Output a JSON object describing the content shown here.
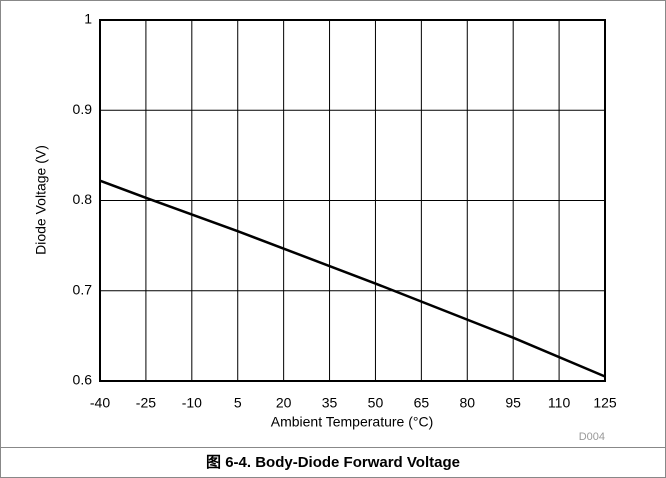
{
  "chart_data": {
    "type": "line",
    "x_label": "Ambient Temperature (°C)",
    "y_label": "Diode Voltage (V)",
    "annotation": "D004",
    "x": [
      -40,
      -25,
      5,
      50,
      95,
      125
    ],
    "series": [
      {
        "name": "Body-Diode Forward Voltage",
        "color": "#000000",
        "values": [
          0.822,
          0.803,
          0.766,
          0.708,
          0.648,
          0.605
        ]
      }
    ],
    "xlim": [
      -40,
      125
    ],
    "xticks": [
      -40,
      -25,
      -10,
      5,
      20,
      35,
      50,
      65,
      80,
      95,
      110,
      125
    ],
    "ylim": [
      0.6,
      1
    ],
    "yticks": [
      0.6,
      0.7,
      0.8,
      0.9,
      1
    ],
    "grid": true
  },
  "caption": "图 6-4. Body-Diode Forward Voltage"
}
